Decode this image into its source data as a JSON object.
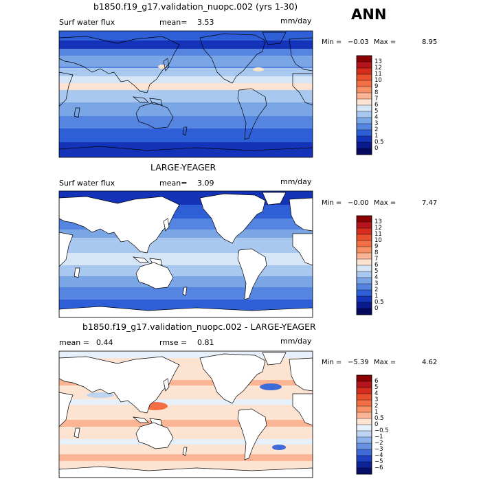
{
  "season": "ANN",
  "panels": [
    {
      "title": "b1850.f19_g17.validation_nuopc.002 (yrs 1-30)",
      "left_label": "Surf water flux",
      "stat_label": "mean=",
      "stat_value": "3.53",
      "units": "mm/day",
      "min_label": "Min =",
      "min_value": "−0.03",
      "max_label": "Max =",
      "max_value": "8.95",
      "colorbar_labels": [
        "13",
        "12",
        "11",
        "10",
        "9",
        "8",
        "7",
        "6",
        "5",
        "4",
        "3",
        "2",
        "1",
        "0.5",
        "0"
      ]
    },
    {
      "title": "LARGE-YEAGER",
      "left_label": "Surf water flux",
      "stat_label": "mean=",
      "stat_value": "3.09",
      "units": "mm/day",
      "min_label": "Min =",
      "min_value": "−0.00",
      "max_label": "Max =",
      "max_value": "7.47",
      "colorbar_labels": [
        "13",
        "12",
        "11",
        "10",
        "9",
        "8",
        "7",
        "6",
        "5",
        "4",
        "3",
        "2",
        "1",
        "0.5",
        "0"
      ]
    },
    {
      "title": "b1850.f19_g17.validation_nuopc.002 - LARGE-YEAGER",
      "left_label": "mean =",
      "left_value": "0.44",
      "stat_label": "rmse =",
      "stat_value": "0.81",
      "units": "mm/day",
      "min_label": "Min =",
      "min_value": "−5.39",
      "max_label": "Max =",
      "max_value": "4.62",
      "colorbar_labels": [
        "6",
        "5",
        "4",
        "3",
        "2",
        "1",
        "0.5",
        "0",
        "−0.5",
        "−1",
        "−2",
        "−3",
        "−4",
        "−5",
        "−6"
      ]
    }
  ],
  "palettes": {
    "abs": [
      "#8b0000",
      "#b3151b",
      "#d42d1e",
      "#e8512d",
      "#f26e45",
      "#f89168",
      "#fbb595",
      "#fde3d2",
      "#d6e6f7",
      "#a9c8ef",
      "#7aa6e6",
      "#5585e0",
      "#2f5fd6",
      "#1533b8",
      "#081a8c",
      "#060a5e"
    ],
    "diff": [
      "#8b0000",
      "#b3151b",
      "#d42d1e",
      "#e8512d",
      "#f26e45",
      "#f89168",
      "#fbb595",
      "#fde3d2",
      "#e6f0fb",
      "#bcd4f2",
      "#8fb3ea",
      "#6891e2",
      "#3f6bd8",
      "#1d40c0",
      "#0d2296",
      "#070e66"
    ]
  }
}
